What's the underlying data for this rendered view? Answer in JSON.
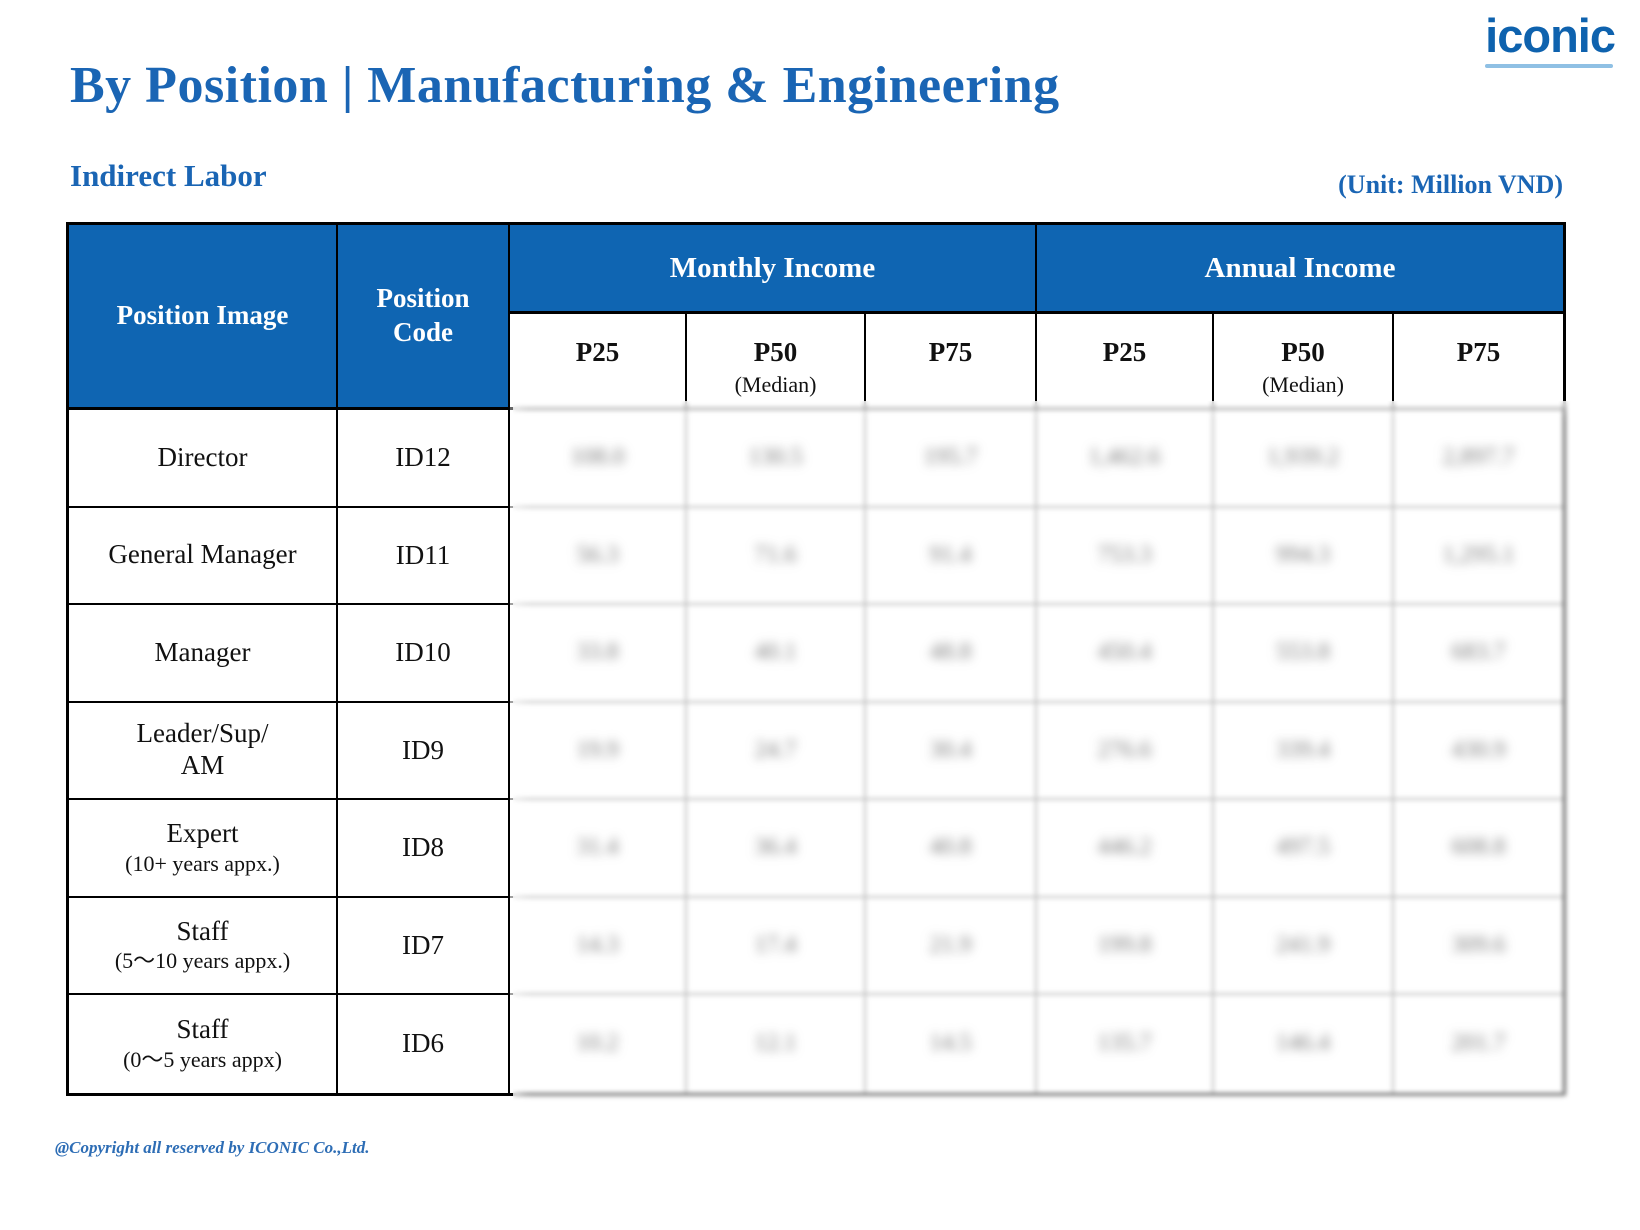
{
  "page": {
    "logo": "iconic",
    "title": "By Position | Manufacturing & Engineering",
    "section_title": "Indirect Labor",
    "unit_note": "(Unit: Million VND)",
    "footer": "@Copyright all reserved by ICONIC Co.,Ltd."
  },
  "colors": {
    "header_blue": "#0f65b2",
    "title_blue": "#1a65b4",
    "logo_blue": "#0e62ae",
    "footer_blue": "#2d6db5",
    "blurred_grid_gray": "#c4c4c4"
  },
  "table": {
    "values_obscured": true,
    "headers": {
      "position_image": "Position Image",
      "position_code": "Position\nCode",
      "monthly_income": "Monthly Income",
      "annual_income": "Annual Income",
      "p25": "P25",
      "p50": "P50",
      "p50_sub": "(Median)",
      "p75": "P75"
    },
    "rows": [
      {
        "position": "Director",
        "sub": "",
        "code": "ID12",
        "values": [
          "108.0",
          "130.5",
          "195.7",
          "1,462.6",
          "1,939.2",
          "2,897.7"
        ]
      },
      {
        "position": "General Manager",
        "sub": "",
        "code": "ID11",
        "values": [
          "56.3",
          "71.6",
          "91.4",
          "753.3",
          "994.3",
          "1,295.1"
        ]
      },
      {
        "position": "Manager",
        "sub": "",
        "code": "ID10",
        "values": [
          "33.8",
          "40.1",
          "48.8",
          "450.4",
          "553.8",
          "683.7"
        ]
      },
      {
        "position": "Leader/Sup/\nAM",
        "sub": "",
        "code": "ID9",
        "values": [
          "19.9",
          "24.7",
          "30.4",
          "276.6",
          "339.4",
          "430.9"
        ]
      },
      {
        "position": "Expert",
        "sub": "(10+ years appx.)",
        "code": "ID8",
        "values": [
          "31.4",
          "36.4",
          "40.8",
          "446.2",
          "497.5",
          "608.8"
        ]
      },
      {
        "position": "Staff",
        "sub": "(5～10 years appx.)",
        "code": "ID7",
        "values": [
          "14.3",
          "17.4",
          "21.9",
          "199.8",
          "241.9",
          "309.6"
        ]
      },
      {
        "position": "Staff",
        "sub": "(0～5 years appx)",
        "code": "ID6",
        "values": [
          "10.2",
          "12.1",
          "14.5",
          "135.7",
          "146.4",
          "201.7"
        ]
      }
    ]
  }
}
